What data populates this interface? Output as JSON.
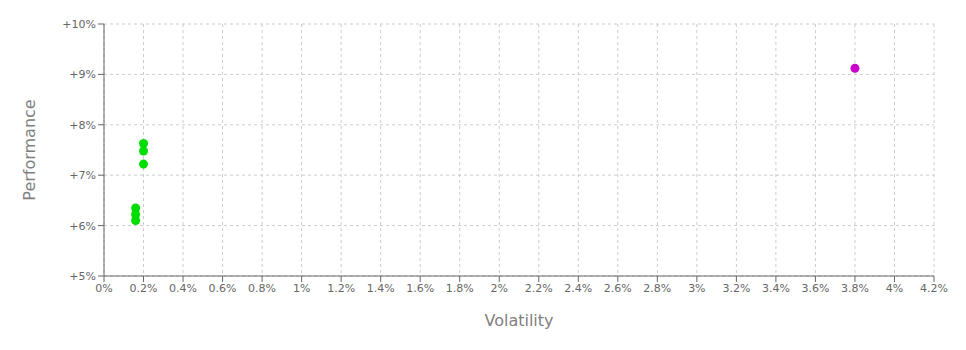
{
  "chart_data": {
    "type": "scatter",
    "xlabel": "Volatility",
    "ylabel": "Performance",
    "xlim": [
      0.0,
      0.042
    ],
    "ylim": [
      0.05,
      0.1
    ],
    "xticks": [
      {
        "value": 0.0,
        "label": "0%"
      },
      {
        "value": 0.002,
        "label": "0.2%"
      },
      {
        "value": 0.004,
        "label": "0.4%"
      },
      {
        "value": 0.006,
        "label": "0.6%"
      },
      {
        "value": 0.008,
        "label": "0.8%"
      },
      {
        "value": 0.01,
        "label": "1%"
      },
      {
        "value": 0.012,
        "label": "1.2%"
      },
      {
        "value": 0.014,
        "label": "1.4%"
      },
      {
        "value": 0.016,
        "label": "1.6%"
      },
      {
        "value": 0.018,
        "label": "1.8%"
      },
      {
        "value": 0.02,
        "label": "2%"
      },
      {
        "value": 0.022,
        "label": "2.2%"
      },
      {
        "value": 0.024,
        "label": "2.4%"
      },
      {
        "value": 0.026,
        "label": "2.6%"
      },
      {
        "value": 0.028,
        "label": "2.8%"
      },
      {
        "value": 0.03,
        "label": "3%"
      },
      {
        "value": 0.032,
        "label": "3.2%"
      },
      {
        "value": 0.034,
        "label": "3.4%"
      },
      {
        "value": 0.036,
        "label": "3.6%"
      },
      {
        "value": 0.038,
        "label": "3.8%"
      },
      {
        "value": 0.04,
        "label": "4%"
      },
      {
        "value": 0.042,
        "label": "4.2%"
      }
    ],
    "yticks": [
      {
        "value": 0.05,
        "label": "+5%"
      },
      {
        "value": 0.06,
        "label": "+6%"
      },
      {
        "value": 0.07,
        "label": "+7%"
      },
      {
        "value": 0.08,
        "label": "+8%"
      },
      {
        "value": 0.09,
        "label": "+9%"
      },
      {
        "value": 0.1,
        "label": "+10%"
      }
    ],
    "grid": true,
    "series": [
      {
        "color": "#00dd00",
        "x": [
          0.002,
          0.002,
          0.002,
          0.0016,
          0.0016,
          0.0016
        ],
        "values": [
          0.0763,
          0.0748,
          0.0722,
          0.0635,
          0.0622,
          0.061
        ]
      },
      {
        "color": "#cc00cc",
        "x": [
          0.038
        ],
        "values": [
          0.0912
        ]
      }
    ]
  }
}
